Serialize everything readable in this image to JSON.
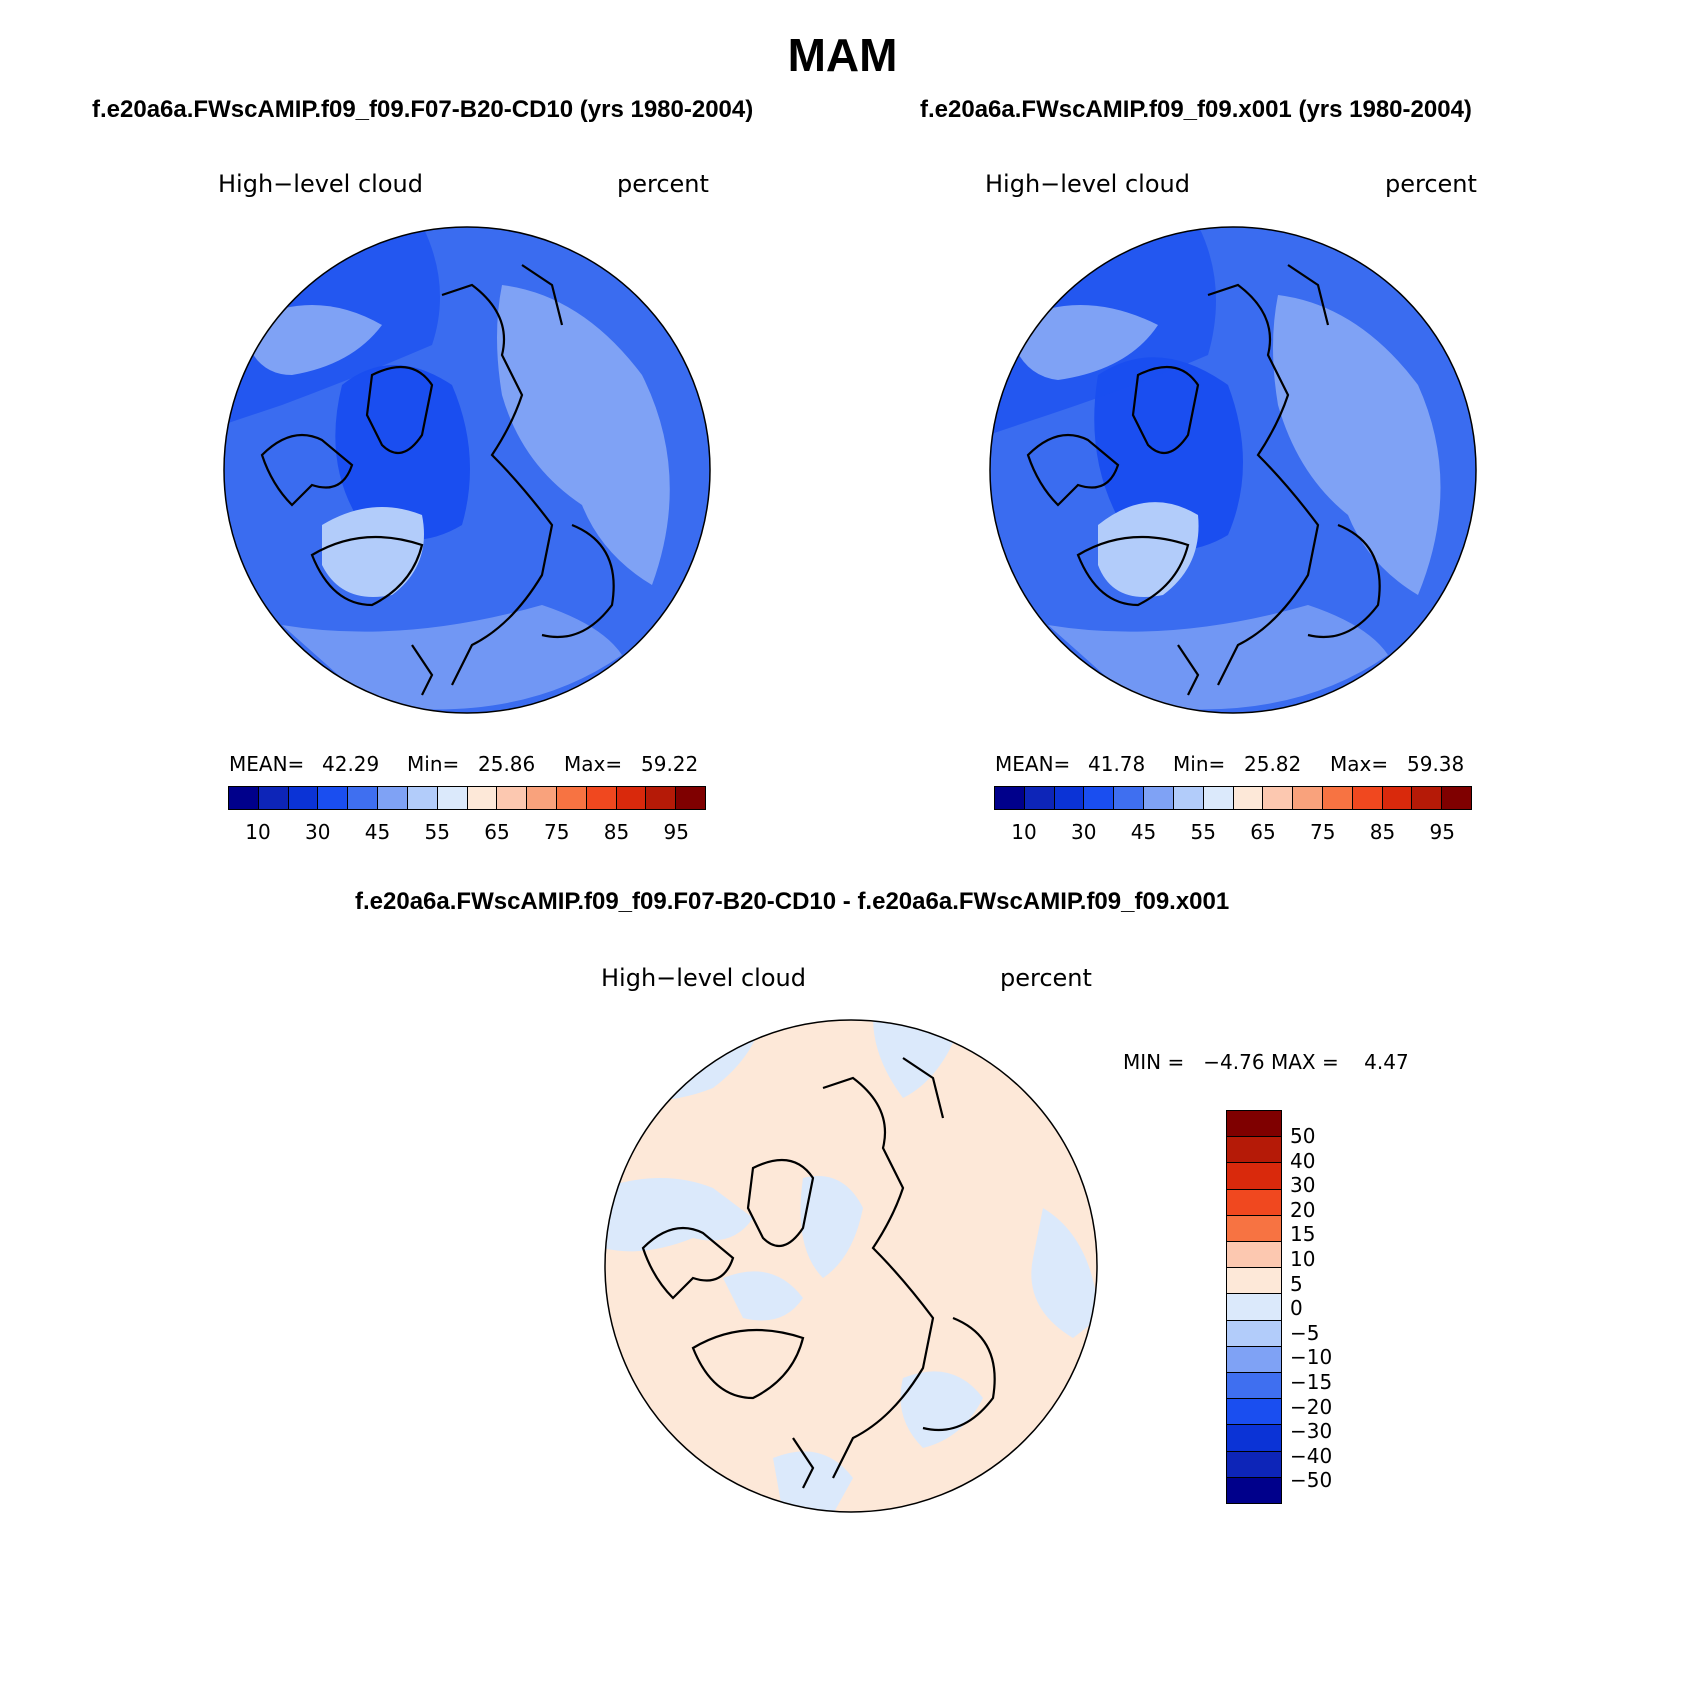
{
  "title": "MAM",
  "panels": {
    "left": {
      "subtitle": "f.e20a6a.FWscAMIP.f09_f09.F07-B20-CD10 (yrs 1980-2004)",
      "field_label": "High−level cloud",
      "units_label": "percent",
      "mean_label": "MEAN=",
      "mean_value": "42.29",
      "min_label": "Min=",
      "min_value": "25.86",
      "max_label": "Max=",
      "max_value": "59.22"
    },
    "right": {
      "subtitle": "f.e20a6a.FWscAMIP.f09_f09.x001 (yrs 1980-2004)",
      "field_label": "High−level cloud",
      "units_label": "percent",
      "mean_label": "MEAN=",
      "mean_value": "41.78",
      "min_label": "Min=",
      "min_value": "25.82",
      "max_label": "Max=",
      "max_value": "59.38"
    },
    "diff": {
      "subtitle": "f.e20a6a.FWscAMIP.f09_f09.F07-B20-CD10 - f.e20a6a.FWscAMIP.f09_f09.x001",
      "field_label": "High−level cloud",
      "units_label": "percent",
      "minmax_text": "MIN =   −4.76 MAX =    4.47"
    }
  },
  "colorbar_abs": {
    "colors": [
      "#00008b",
      "#0d25b8",
      "#0b33d6",
      "#1a4ef0",
      "#3f6ff0",
      "#7fa2f5",
      "#b2ccfa",
      "#dbe9fb",
      "#fde8d8",
      "#fcc8b0",
      "#f9a27c",
      "#f77342",
      "#f0481f",
      "#d9290c",
      "#b51a07",
      "#7f0000"
    ],
    "tick_labels": [
      "10",
      "30",
      "45",
      "55",
      "65",
      "75",
      "85",
      "95"
    ]
  },
  "colorbar_diff": {
    "colors": [
      "#7f0000",
      "#b51a07",
      "#d9290c",
      "#f0481f",
      "#f77342",
      "#fcc8b0",
      "#fde8d8",
      "#dbe9fb",
      "#b2ccfa",
      "#7fa2f5",
      "#3f6ff0",
      "#1a4ef0",
      "#0b33d6",
      "#0d25b8",
      "#00008b"
    ],
    "tick_labels": [
      "50",
      "40",
      "30",
      "20",
      "15",
      "10",
      "5",
      "0",
      "−5",
      "−10",
      "−15",
      "−20",
      "−30",
      "−40",
      "−50"
    ]
  },
  "palette": {
    "map_base_abs": "#3a6cf0",
    "map_dark_abs": "#1a4ef0",
    "map_light_abs": "#7fa2f5",
    "map_lighter_abs": "#b2ccfa",
    "map_base_diff": "#fde8d8",
    "map_alt_diff": "#dbe9fb"
  }
}
